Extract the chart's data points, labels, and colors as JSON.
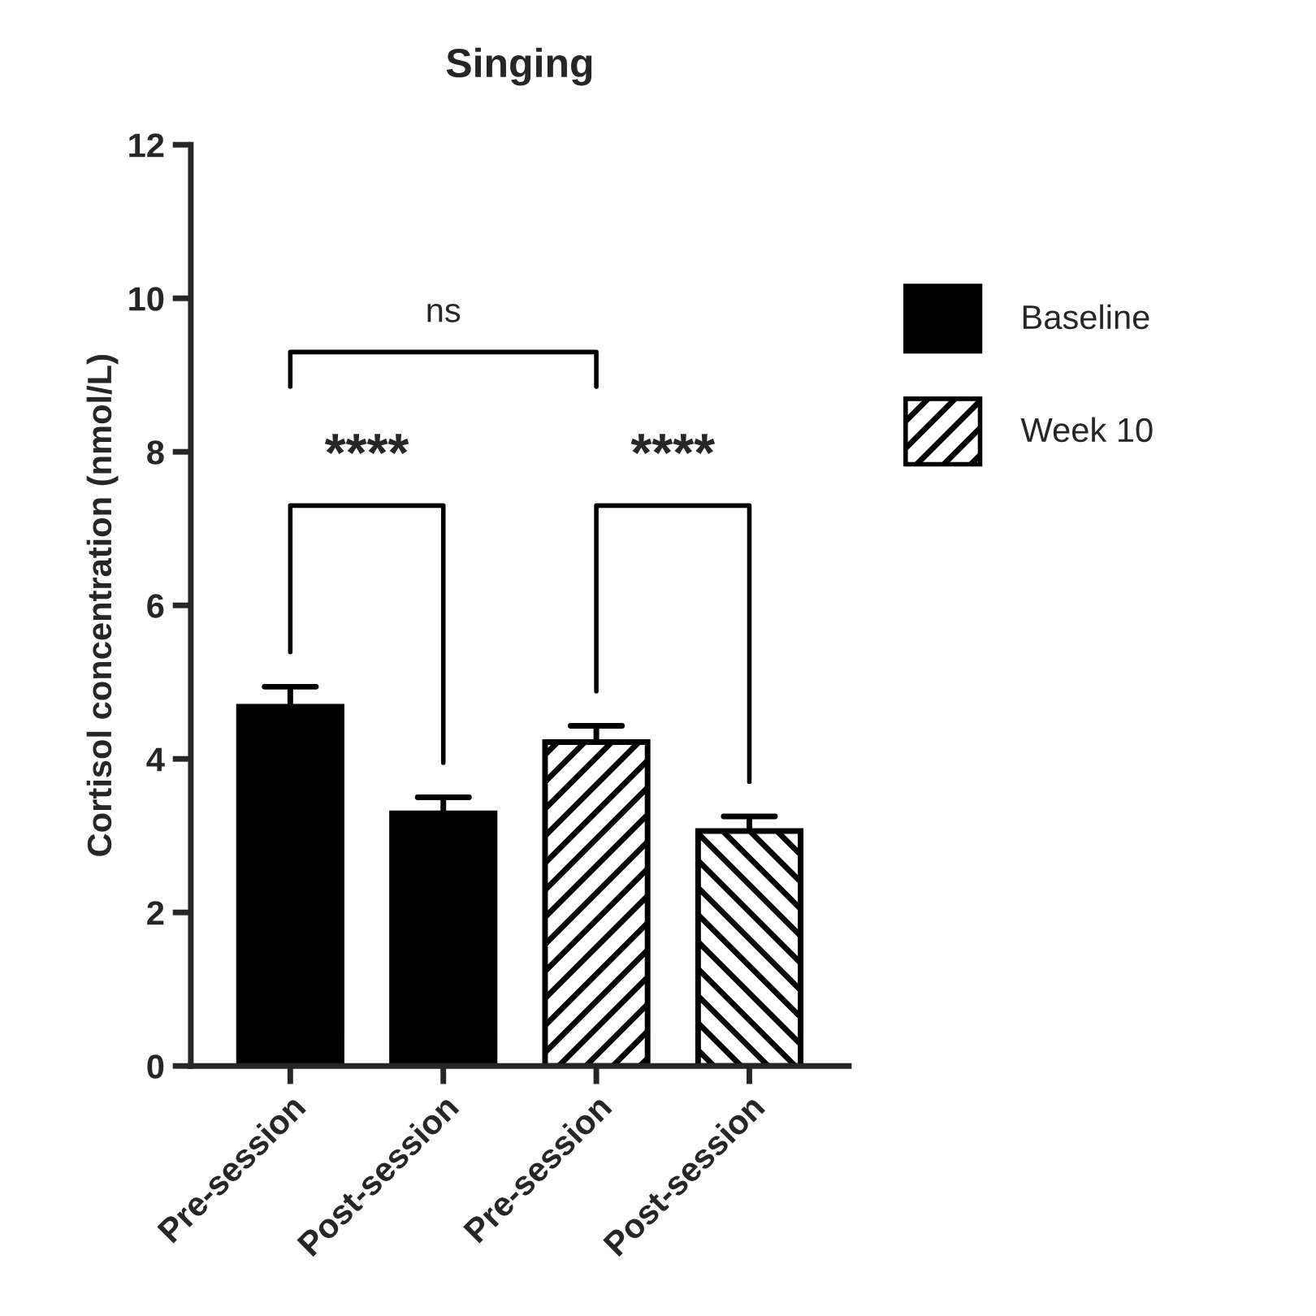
{
  "chart_data": {
    "type": "bar",
    "title": "Singing",
    "ylabel": "Cortisol concentration (nmol/L)",
    "categories": [
      "Pre-session",
      "Post-session",
      "Pre-session",
      "Post-session"
    ],
    "series": [
      {
        "name": "Baseline",
        "color": "#000000",
        "values": [
          4.68,
          3.29,
          null,
          null
        ],
        "errors": [
          [
            4.68,
            4.94
          ],
          [
            3.29,
            3.5
          ],
          null,
          null
        ]
      },
      {
        "name": "Week 10",
        "color": "#000000",
        "values": [
          null,
          null,
          4.22,
          3.06
        ],
        "errors": [
          null,
          null,
          [
            4.22,
            4.43
          ],
          [
            3.06,
            3.25
          ]
        ]
      }
    ],
    "ylim": [
      0,
      12
    ],
    "yticks": [
      0,
      2,
      4,
      6,
      8,
      10,
      12
    ],
    "annotations": [
      "ns",
      "****",
      "****"
    ],
    "legend": "right",
    "grid": false
  }
}
